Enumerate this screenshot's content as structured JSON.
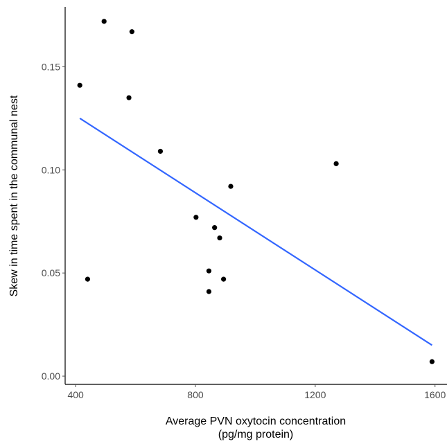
{
  "chart_data": {
    "type": "scatter",
    "xlabel_lines": [
      "Average PVN oxytocin concentration",
      "(pg/mg protein)"
    ],
    "ylabel": "Skew in time spent in the communal nest",
    "xlim": [
      365,
      1640
    ],
    "ylim": [
      -0.004,
      0.179
    ],
    "x_ticks": [
      400,
      800,
      1200,
      1600
    ],
    "x_tick_labels": [
      "400",
      "800",
      "1200",
      "1600"
    ],
    "y_ticks": [
      0.0,
      0.05,
      0.1,
      0.15
    ],
    "y_tick_labels": [
      "0.00",
      "0.05",
      "0.10",
      "0.15"
    ],
    "grid": false,
    "points": [
      {
        "x": 414,
        "y": 0.141
      },
      {
        "x": 440,
        "y": 0.047
      },
      {
        "x": 495,
        "y": 0.172
      },
      {
        "x": 578,
        "y": 0.135
      },
      {
        "x": 588,
        "y": 0.167
      },
      {
        "x": 683,
        "y": 0.109
      },
      {
        "x": 802,
        "y": 0.077
      },
      {
        "x": 845,
        "y": 0.051
      },
      {
        "x": 845,
        "y": 0.041
      },
      {
        "x": 864,
        "y": 0.072
      },
      {
        "x": 881,
        "y": 0.067
      },
      {
        "x": 894,
        "y": 0.047
      },
      {
        "x": 918,
        "y": 0.092
      },
      {
        "x": 1270,
        "y": 0.103
      },
      {
        "x": 1590,
        "y": 0.007
      }
    ],
    "trend_line": {
      "x": [
        414,
        1590
      ],
      "y": [
        0.125,
        0.015
      ]
    },
    "colors": {
      "points": "#000000",
      "trend": "#3366ff",
      "axis": "#000000",
      "tick_text": "#4d4d4d"
    }
  }
}
